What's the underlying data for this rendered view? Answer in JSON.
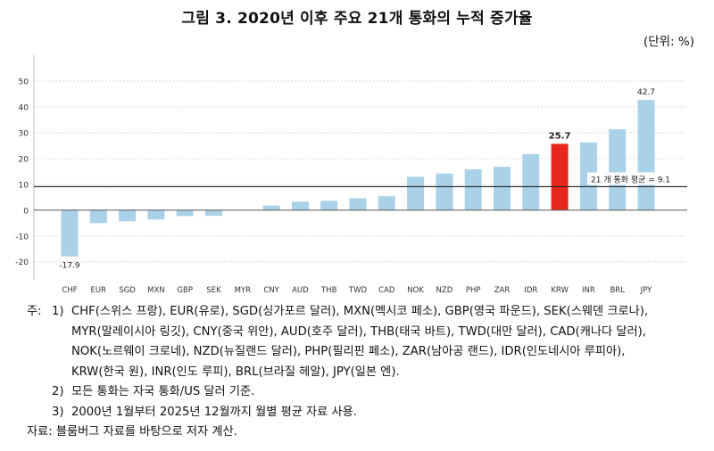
{
  "title": "그림 3. 2020년 이후 주요 21개 통화의 누적 증가율",
  "unit_label": "(단위: %)",
  "chart_data": {
    "type": "bar",
    "categories": [
      "CHF",
      "EUR",
      "SGD",
      "MXN",
      "GBP",
      "SEK",
      "MYR",
      "CNY",
      "AUD",
      "THB",
      "TWD",
      "CAD",
      "NOK",
      "NZD",
      "PHP",
      "ZAR",
      "IDR",
      "KRW",
      "INR",
      "BRL",
      "JPY"
    ],
    "values": [
      -17.9,
      -5.0,
      -4.3,
      -3.6,
      -2.3,
      -2.2,
      0.0,
      1.8,
      3.3,
      3.6,
      4.6,
      5.4,
      12.9,
      14.2,
      15.8,
      16.8,
      21.7,
      25.7,
      26.2,
      31.3,
      42.7
    ],
    "highlight": "KRW",
    "data_labels": [
      {
        "category": "CHF",
        "text": "-17.9"
      },
      {
        "category": "KRW",
        "text": "25.7"
      },
      {
        "category": "JPY",
        "text": "42.7"
      }
    ],
    "reference_line": {
      "value": 9.1,
      "label": "21 개 통화 평균 = 9.1"
    },
    "ylim": [
      -27,
      60
    ],
    "yticks": [
      50,
      40,
      30,
      20,
      10,
      0,
      -10,
      -20
    ],
    "grid": true,
    "xlabel": "",
    "ylabel": "",
    "colors": {
      "bar": "#a9d2e8",
      "highlight": "#e8271c",
      "reference": "#222222",
      "grid": "#d9d9d9"
    }
  },
  "notes": {
    "prefix": "주:",
    "items": [
      {
        "num": "1)",
        "lines": [
          "CHF(스위스 프랑), EUR(유로), SGD(싱가포르 달러), MXN(멕시코 페소), GBP(영국 파운드), SEK(스웨덴 크로나),",
          "MYR(말레이시아 링깃), CNY(중국 위안), AUD(호주 달러), THB(태국 바트), TWD(대만 달러), CAD(캐나다 달러),",
          "NOK(노르웨이 크로네), NZD(뉴질랜드 달러), PHP(필리핀 페소), ZAR(남아공 랜드), IDR(인도네시아 루피아),",
          "KRW(한국 원), INR(인도 루피), BRL(브라질 헤알), JPY(일본 엔)."
        ]
      },
      {
        "num": "2)",
        "lines": [
          "모든 통화는 자국 통화/US 달러 기준."
        ]
      },
      {
        "num": "3)",
        "lines": [
          "2000년 1월부터 2025년 12월까지 월별 평균 자료 사용."
        ]
      }
    ]
  },
  "source": "자료: 블룸버그 자료를 바탕으로 저자 계산."
}
